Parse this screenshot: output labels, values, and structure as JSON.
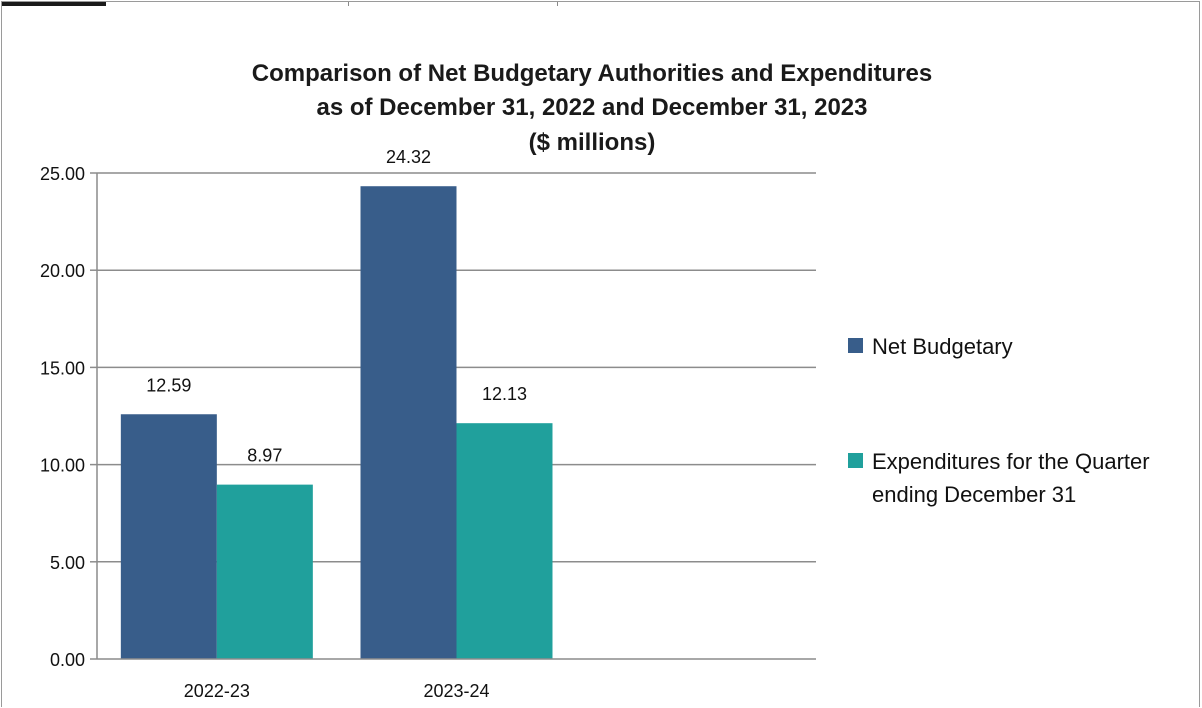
{
  "chart_data": {
    "type": "bar",
    "title_lines": [
      "Comparison of Net Budgetary Authorities and Expenditures",
      "as of December 31, 2022 and December 31, 2023",
      "($ millions)"
    ],
    "categories": [
      "2022-23",
      "2023-24"
    ],
    "series": [
      {
        "name": "Net Budgetary",
        "values": [
          12.59,
          24.32
        ],
        "labels": [
          "12.59",
          "24.32"
        ],
        "color": "#385D8A"
      },
      {
        "name": "Expenditures for the Quarter ending December 31",
        "name_lines": [
          "Expenditures for the Quarter",
          "ending December 31"
        ],
        "values": [
          8.97,
          12.13
        ],
        "labels": [
          "8.97",
          "12.13"
        ],
        "color": "#20A09C"
      }
    ],
    "yticks": [
      "0.00",
      "5.00",
      "10.00",
      "15.00",
      "20.00",
      "25.00"
    ],
    "ylim": [
      0,
      25
    ],
    "grid": true,
    "legend_position": "right"
  }
}
